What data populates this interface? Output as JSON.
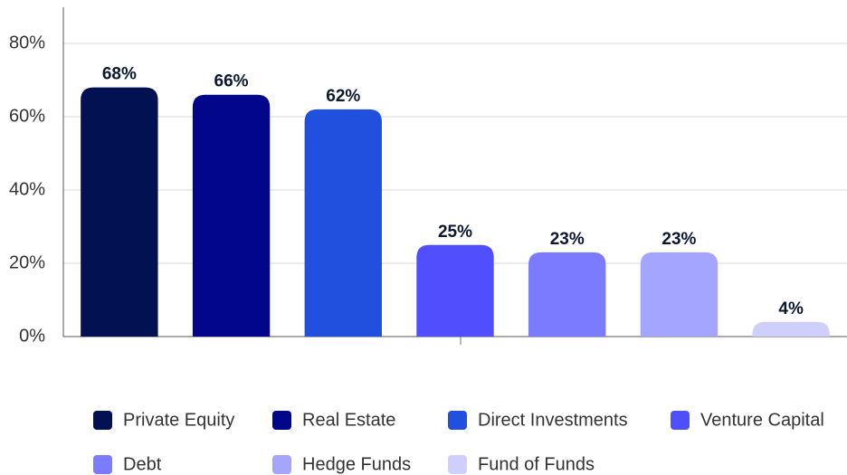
{
  "chart_data": {
    "type": "bar",
    "categories": [
      "Private Equity",
      "Real Estate",
      "Direct Investments",
      "Venture Capital",
      "Debt",
      "Hedge Funds",
      "Fund of Funds"
    ],
    "values": [
      68,
      66,
      62,
      25,
      23,
      23,
      4
    ],
    "value_labels": [
      "68%",
      "66%",
      "62%",
      "25%",
      "23%",
      "23%",
      "4%"
    ],
    "colors": [
      "#011152",
      "#01068a",
      "#2250de",
      "#4f4ffe",
      "#7a7bff",
      "#a4a5ff",
      "#cfcffb"
    ],
    "ylim": [
      0,
      80
    ],
    "yticks": [
      {
        "value": 0,
        "label": "0%"
      },
      {
        "value": 20,
        "label": "20%"
      },
      {
        "value": 40,
        "label": "40%"
      },
      {
        "value": 60,
        "label": "60%"
      },
      {
        "value": 80,
        "label": "80%"
      }
    ],
    "grid": true,
    "legend": "bottom"
  }
}
